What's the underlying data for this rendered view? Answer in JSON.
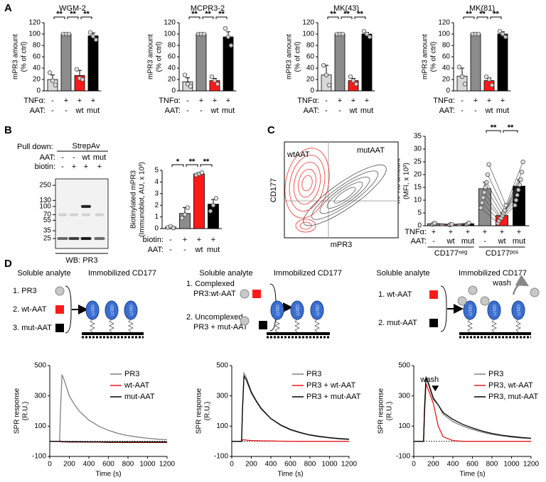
{
  "panels": [
    "A",
    "B",
    "C",
    "D"
  ],
  "chart_data": [
    {
      "type": "bar",
      "title": "WGM-2",
      "ylabel": [
        "mPR3 amount",
        "(% of ctrl)"
      ],
      "ylim": [
        0,
        120
      ],
      "yticks": [
        0,
        20,
        40,
        60,
        80,
        100,
        120
      ],
      "values": [
        20,
        100,
        27,
        97
      ],
      "errors": [
        8,
        0,
        9,
        5
      ],
      "points": [
        [
          32,
          18,
          10
        ],
        [
          100,
          100,
          100
        ],
        [
          38,
          22,
          20
        ],
        [
          103,
          96,
          90
        ]
      ],
      "colors": [
        "#d8d8d8",
        "#8c8c8c",
        "#ff1a1a",
        "#000000"
      ],
      "category_rows": [
        {
          "label": "TNFα:",
          "labels": [
            "-",
            "+",
            "+",
            "+"
          ]
        },
        {
          "label": "AAT:",
          "labels": [
            "-",
            "-",
            "wt",
            "mut"
          ]
        }
      ],
      "brackets": [
        {
          "label": "**",
          "from": 0,
          "to": 1
        },
        {
          "label": "**",
          "from": 1,
          "to": 2
        },
        {
          "label": "**",
          "from": 2,
          "to": 3
        }
      ]
    },
    {
      "type": "bar",
      "title": "MCPR3-2",
      "ylabel": [
        "mPR3 amount",
        "(% of ctrl)"
      ],
      "ylim": [
        0,
        120
      ],
      "yticks": [
        0,
        20,
        40,
        60,
        80,
        100,
        120
      ],
      "values": [
        16,
        100,
        18,
        95
      ],
      "errors": [
        7,
        0,
        4,
        9
      ],
      "points": [
        [
          28,
          12,
          8
        ],
        [
          100,
          100,
          100
        ],
        [
          25,
          18,
          12
        ],
        [
          110,
          95,
          80
        ]
      ],
      "colors": [
        "#d8d8d8",
        "#8c8c8c",
        "#ff1a1a",
        "#000000"
      ],
      "category_rows": [
        {
          "label": "TNFα:",
          "labels": [
            "-",
            "+",
            "+",
            "+"
          ]
        },
        {
          "label": "AAT:",
          "labels": [
            "-",
            "-",
            "wt",
            "mut"
          ]
        }
      ],
      "brackets": [
        {
          "label": "**",
          "from": 0,
          "to": 1
        },
        {
          "label": "**",
          "from": 1,
          "to": 2
        },
        {
          "label": "**",
          "from": 2,
          "to": 3
        }
      ]
    },
    {
      "type": "bar",
      "title": "MK(43)",
      "ylabel": [
        "mPR3 amount",
        "(% of ctrl)"
      ],
      "ylim": [
        0,
        120
      ],
      "yticks": [
        0,
        20,
        40,
        60,
        80,
        100,
        120
      ],
      "values": [
        28,
        100,
        18,
        100
      ],
      "errors": [
        17,
        0,
        4,
        3
      ],
      "points": [
        [
          45,
          28,
          10
        ],
        [
          100,
          100,
          100
        ],
        [
          25,
          18,
          12
        ],
        [
          105,
          100,
          95
        ]
      ],
      "colors": [
        "#d8d8d8",
        "#8c8c8c",
        "#ff1a1a",
        "#000000"
      ],
      "category_rows": [
        {
          "label": "TNFα:",
          "labels": [
            "-",
            "+",
            "+",
            "+"
          ]
        },
        {
          "label": "AAT:",
          "labels": [
            "-",
            "-",
            "wt",
            "mut"
          ]
        }
      ],
      "brackets": [
        {
          "label": "**",
          "from": 0,
          "to": 1
        },
        {
          "label": "**",
          "from": 1,
          "to": 2
        },
        {
          "label": "**",
          "from": 2,
          "to": 3
        }
      ]
    },
    {
      "type": "bar",
      "title": "MK(81)",
      "ylabel": [
        "mPR3 amount",
        "(% of ctrl)"
      ],
      "ylim": [
        0,
        120
      ],
      "yticks": [
        0,
        20,
        40,
        60,
        80,
        100,
        120
      ],
      "values": [
        26,
        100,
        18,
        100
      ],
      "errors": [
        14,
        0,
        5,
        4
      ],
      "points": [
        [
          42,
          25,
          12
        ],
        [
          100,
          100,
          100
        ],
        [
          25,
          20,
          10
        ],
        [
          105,
          100,
          95
        ]
      ],
      "colors": [
        "#d8d8d8",
        "#8c8c8c",
        "#ff1a1a",
        "#000000"
      ],
      "category_rows": [
        {
          "label": "TNFα:",
          "labels": [
            "-",
            "+",
            "+",
            "+"
          ]
        },
        {
          "label": "AAT:",
          "labels": [
            "-",
            "-",
            "wt",
            "mut"
          ]
        }
      ],
      "brackets": [
        {
          "label": "**",
          "from": 0,
          "to": 1
        },
        {
          "label": "**",
          "from": 1,
          "to": 2
        },
        {
          "label": "**",
          "from": 2,
          "to": 3
        }
      ]
    },
    {
      "type": "bar",
      "ylabel": [
        "Biotinylated mPR3",
        "(Immunoblot, AU, x 10³)"
      ],
      "ylim": [
        0,
        5
      ],
      "yticks": [
        0,
        1,
        2,
        3,
        4,
        5
      ],
      "values": [
        0.12,
        1.3,
        4.7,
        2.1
      ],
      "errors": [
        0.05,
        0.5,
        0.1,
        0.4
      ],
      "points": [
        [
          0.1,
          0.2,
          0.05
        ],
        [
          0.9,
          1.2,
          1.8
        ],
        [
          4.6,
          4.7,
          4.8
        ],
        [
          1.5,
          2.0,
          2.6
        ]
      ],
      "colors": [
        "#d8d8d8",
        "#8c8c8c",
        "#ff1a1a",
        "#000000"
      ],
      "category_rows": [
        {
          "label": "biotin:",
          "labels": [
            "-",
            "+",
            "+",
            "+"
          ]
        },
        {
          "label": "AAT:",
          "labels": [
            "-",
            "-",
            "wt",
            "mut"
          ]
        }
      ],
      "brackets": [
        {
          "label": "*",
          "from": 0,
          "to": 1
        },
        {
          "label": "**",
          "from": 1,
          "to": 2
        },
        {
          "label": "**",
          "from": 2,
          "to": 3
        }
      ]
    },
    {
      "type": "bar",
      "ylabel": [
        "mPR3 amount",
        "(MFI, x 10³)"
      ],
      "ylim": [
        0,
        35
      ],
      "yticks": [
        0,
        5,
        10,
        15,
        20,
        25,
        30,
        35
      ],
      "values": [
        0.8,
        0.5,
        0.8,
        14.5,
        4,
        15.5
      ],
      "errors": [
        0.2,
        0.1,
        0.2,
        2.5,
        1,
        2.5
      ],
      "points": [
        [
          0.5,
          0.8,
          1.0
        ],
        [
          0.3,
          0.5,
          0.6
        ],
        [
          0.5,
          0.8,
          1.1
        ],
        [
          7,
          9,
          11,
          13,
          15,
          17,
          20,
          24
        ],
        [
          1,
          2,
          3,
          3,
          4,
          5,
          6,
          8
        ],
        [
          8,
          10,
          12,
          14,
          16,
          18,
          21,
          25
        ]
      ],
      "paired": true,
      "colors": [
        "#8c8c8c",
        "#ff1a1a",
        "#000000",
        "#8c8c8c",
        "#ff1a1a",
        "#000000"
      ],
      "category_rows": [
        {
          "label": "TNFα:",
          "labels": [
            "+",
            "+",
            "+",
            "+",
            "+",
            "+"
          ]
        },
        {
          "label": "AAT:",
          "labels": [
            "-",
            "wt",
            "mut",
            "-",
            "wt",
            "mut"
          ]
        }
      ],
      "groups": [
        {
          "label": "CD177ⁿᵉᵍ",
          "from": 0,
          "to": 2
        },
        {
          "label": "CD177ᵖᵒˢ",
          "from": 3,
          "to": 5
        }
      ],
      "brackets": [
        {
          "label": "**",
          "from": 3,
          "to": 4
        },
        {
          "label": "**",
          "from": 4,
          "to": 5
        }
      ]
    },
    {
      "type": "line",
      "xlabel": "Time (s)",
      "ylabel": [
        "SPR response",
        "(R.U.)"
      ],
      "xlim": [
        0,
        1200
      ],
      "xticks": [
        0,
        200,
        400,
        600,
        800,
        1000,
        1200
      ],
      "ylim": [
        -100,
        500
      ],
      "yticks": [
        -100,
        100,
        300,
        500
      ],
      "reference_line": 0,
      "legend": "upper right",
      "x": [
        0,
        100,
        110,
        125,
        150,
        200,
        250,
        300,
        400,
        500,
        600,
        700,
        800,
        900,
        1000,
        1100,
        1200
      ],
      "series": [
        {
          "name": "PR3",
          "color": "#808080",
          "values": [
            0,
            0,
            200,
            440,
            400,
            300,
            245,
            200,
            140,
            100,
            72,
            52,
            38,
            28,
            20,
            14,
            10
          ]
        },
        {
          "name": "wt-AAT",
          "color": "#e8191b",
          "values": [
            0,
            0,
            -3,
            -3,
            -4,
            -5,
            -5,
            -5,
            -6,
            -6,
            -7,
            -7,
            -8,
            -8,
            -8,
            -8,
            -8
          ]
        },
        {
          "name": "mut-AAT",
          "color": "#000000",
          "values": [
            0,
            0,
            0,
            -2,
            -2,
            -3,
            -3,
            -3,
            -4,
            -4,
            -5,
            -5,
            -5,
            -5,
            -5,
            -5,
            -5
          ]
        }
      ]
    },
    {
      "type": "line",
      "xlabel": "Time (s)",
      "ylabel": [
        "SPR response",
        "(R.U.)"
      ],
      "xlim": [
        0,
        1200
      ],
      "xticks": [
        0,
        200,
        400,
        600,
        800,
        1000,
        1200
      ],
      "ylim": [
        -100,
        500
      ],
      "yticks": [
        -100,
        100,
        300,
        500
      ],
      "reference_line": 0,
      "legend": "upper right",
      "x": [
        0,
        100,
        110,
        125,
        150,
        200,
        250,
        300,
        400,
        500,
        600,
        700,
        800,
        900,
        1000,
        1100,
        1200
      ],
      "series": [
        {
          "name": "PR3",
          "color": "#808080",
          "values": [
            0,
            0,
            220,
            450,
            420,
            330,
            270,
            220,
            150,
            105,
            75,
            55,
            40,
            30,
            22,
            16,
            12
          ]
        },
        {
          "name": "PR3 + wt-AAT",
          "color": "#e8191b",
          "values": [
            0,
            0,
            10,
            10,
            8,
            5,
            4,
            3,
            2,
            1,
            0,
            0,
            0,
            0,
            0,
            0,
            0
          ]
        },
        {
          "name": "PR3 + mut-AAT",
          "color": "#000000",
          "values": [
            0,
            0,
            210,
            430,
            405,
            320,
            265,
            215,
            150,
            108,
            78,
            58,
            42,
            32,
            24,
            18,
            14
          ]
        }
      ]
    },
    {
      "type": "line",
      "xlabel": "Time (s)",
      "ylabel": [
        "SPR response",
        "(R.U.)"
      ],
      "xlim": [
        0,
        1200
      ],
      "xticks": [
        0,
        200,
        400,
        600,
        800,
        1000,
        1200
      ],
      "ylim": [
        -100,
        500
      ],
      "yticks": [
        -100,
        100,
        300,
        500
      ],
      "reference_line": 0,
      "legend": "upper right",
      "annotation": {
        "text": "wash",
        "x": 220,
        "y": 330
      },
      "x": [
        0,
        100,
        110,
        125,
        150,
        200,
        250,
        300,
        400,
        500,
        600,
        700,
        800,
        900,
        1000,
        1100,
        1200
      ],
      "series": [
        {
          "name": "PR3",
          "color": "#808080",
          "values": [
            0,
            0,
            200,
            430,
            390,
            290,
            240,
            180,
            130,
            100,
            78,
            60,
            46,
            36,
            28,
            22,
            18
          ]
        },
        {
          "name": "PR3, wt-AAT",
          "color": "#e8191b",
          "values": [
            0,
            0,
            180,
            380,
            340,
            250,
            100,
            30,
            5,
            0,
            0,
            0,
            0,
            0,
            0,
            0,
            0
          ]
        },
        {
          "name": "PR3, mut-AAT",
          "color": "#000000",
          "values": [
            0,
            0,
            210,
            420,
            380,
            280,
            240,
            190,
            145,
            112,
            88,
            68,
            52,
            40,
            32,
            25,
            20
          ]
        }
      ]
    }
  ],
  "blot": {
    "header": "Pull down:",
    "pulldown": "StrepAv",
    "rows": [
      {
        "label": "AAT:",
        "lanes": [
          "-",
          "-",
          "wt",
          "mut"
        ]
      },
      {
        "label": "biotin:",
        "lanes": [
          "-",
          "+",
          "+",
          "+"
        ]
      }
    ],
    "markers": [
      250,
      130,
      100,
      70,
      55,
      35,
      25
    ],
    "footer": "WB: PR3"
  },
  "flow": {
    "ylabel": "CD177",
    "xlabel": "mPR3",
    "labels": [
      "wtAAT",
      "mutAAT"
    ]
  },
  "diagrams": [
    {
      "analyte_title": "Soluble analyte",
      "surface_title": "Immobilized CD177",
      "receptor": "CD177",
      "items": [
        [
          "1. PR3"
        ],
        [
          "2. wt-AAT"
        ],
        [
          "3. mut-AAT"
        ]
      ]
    },
    {
      "analyte_title": "Soluble analyte",
      "surface_title": "Immobilized CD177",
      "receptor": "CD177",
      "items": [
        [
          "1.    Complexed",
          "PR3:wt-AAT"
        ],
        [
          "2. Uncomplexed",
          "PR3 + mut-AAT"
        ]
      ]
    },
    {
      "analyte_title": "Soluble analyte",
      "surface_title": "Immobilized CD177",
      "receptor": "CD177",
      "items": [
        [
          "1. wt-AAT"
        ],
        [
          "2. mut-AAT"
        ]
      ],
      "wash": "wash"
    }
  ]
}
